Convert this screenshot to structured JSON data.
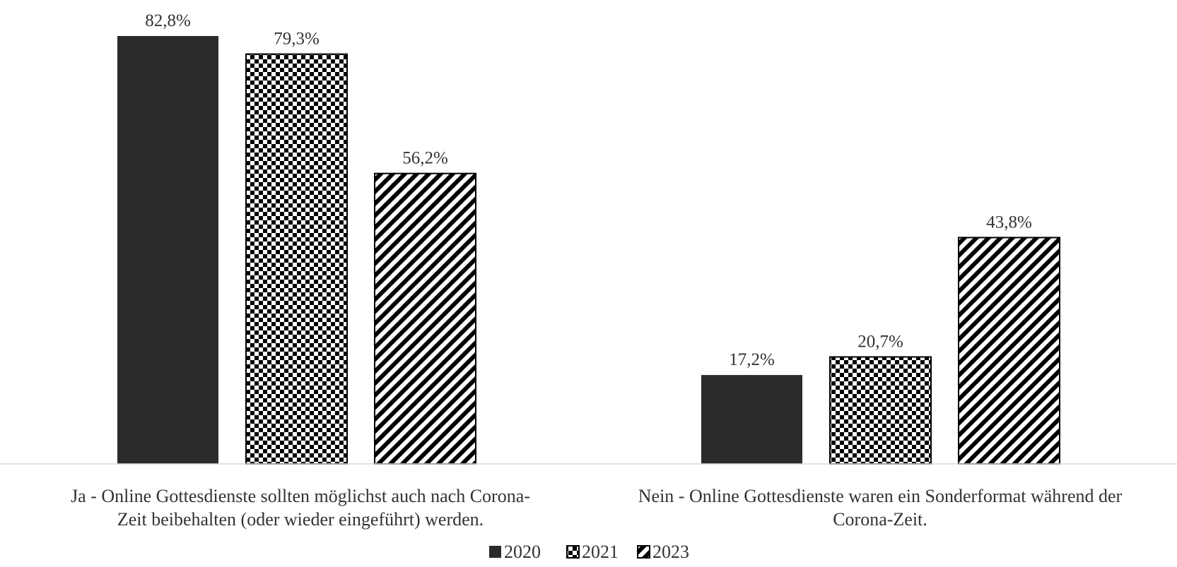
{
  "chart_data": {
    "type": "bar",
    "categories": [
      [
        "Ja - Online Gottesdienste sollten möglichst auch nach Corona-",
        "Zeit beibehalten (oder wieder eingeführt) werden."
      ],
      [
        "Nein - Online Gottesdienste waren ein Sonderformat während der",
        "Corona-Zeit."
      ]
    ],
    "series": [
      {
        "name": "2020",
        "values": [
          82.8,
          17.2
        ],
        "labels": [
          "82,8%",
          "17,2%"
        ],
        "pattern": "solid"
      },
      {
        "name": "2021",
        "values": [
          79.3,
          20.7
        ],
        "labels": [
          "79,3%",
          "20,7%"
        ],
        "pattern": "checker"
      },
      {
        "name": "2023",
        "values": [
          56.2,
          43.8
        ],
        "labels": [
          "56,2%",
          "43,8%"
        ],
        "pattern": "diagonal"
      }
    ],
    "ylim": [
      0,
      82.8
    ],
    "grid": false,
    "legend_position": "bottom",
    "colors": {
      "bar_dark": "#2b2b2b",
      "text": "#333333",
      "axis": "#d9d9d9"
    }
  }
}
